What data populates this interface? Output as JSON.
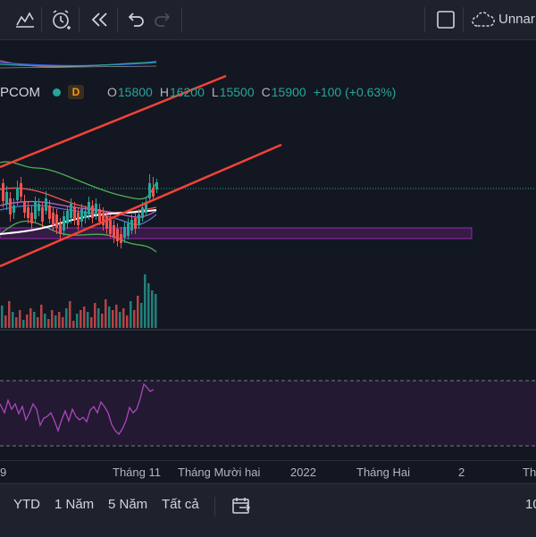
{
  "toolbar": {
    "layout_name": "Unnar",
    "icons": [
      "indicators-icon",
      "alert-icon",
      "replay-icon",
      "undo-icon",
      "redo-icon",
      "fullscreen-icon",
      "cloud-icon"
    ]
  },
  "legend": {
    "symbol": "PCOM",
    "interval_badge": "D",
    "o_label": "O",
    "o_value": "15800",
    "h_label": "H",
    "h_value": "16200",
    "l_label": "L",
    "l_value": "15500",
    "c_label": "C",
    "c_value": "15900",
    "change": "+100 (+0.63%)"
  },
  "xaxis": {
    "labels": [
      "9",
      "Tháng 11",
      "Tháng Mười hai",
      "2022",
      "Tháng Hai",
      "2",
      "Th"
    ]
  },
  "range_bar": {
    "buttons": [
      "YTD",
      "1 Năm",
      "5 Năm",
      "Tất cả"
    ],
    "right_text": "10"
  },
  "colors": {
    "up": "#26a69a",
    "down": "#ef5350",
    "trendline": "#f44336",
    "rsi": "#9c27b0",
    "zone": "#9c27b0",
    "background": "#131722"
  }
}
